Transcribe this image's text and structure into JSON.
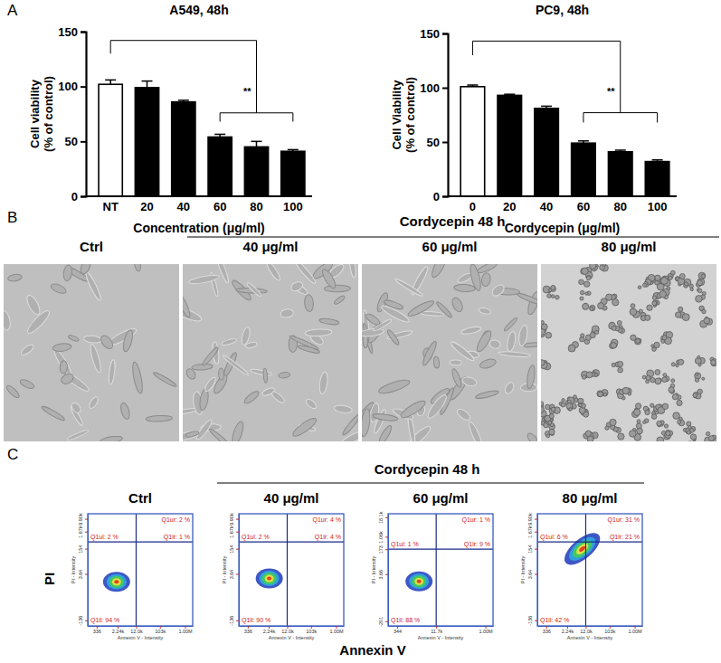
{
  "figure": {
    "panel_labels": [
      "A",
      "B",
      "C"
    ],
    "panel_b": {
      "header": "Cordycepin 48 h",
      "titles": [
        "Ctrl",
        "40 μg/ml",
        "60 μg/ml",
        "80 μg/ml"
      ]
    },
    "panel_c": {
      "header": "Cordycepin 48 h",
      "x_title": "Annexin V",
      "y_title": "PI"
    }
  },
  "chart_data": [
    {
      "type": "bar",
      "title": "A549, 48h",
      "x_label": "Concentration (μg/ml)",
      "y_label": [
        "Cell viability",
        "(% of control)"
      ],
      "categories": [
        "NT",
        "20",
        "40",
        "60",
        "80",
        "100"
      ],
      "values": [
        102,
        99,
        86,
        54,
        45,
        41
      ],
      "errors": [
        4,
        6,
        1.5,
        2.5,
        5,
        1.5
      ],
      "colors": [
        "#ffffff",
        "#000000",
        "#000000",
        "#000000",
        "#000000",
        "#000000"
      ],
      "ylim": [
        0,
        150
      ],
      "yticks": [
        0,
        50,
        100,
        150
      ],
      "brackets": [
        {
          "from": 0,
          "to": 4,
          "y": 142,
          "drops": [
            130,
            76
          ]
        },
        {
          "from": 3,
          "to": 5,
          "y": 76,
          "drops": [
            68,
            68
          ]
        }
      ],
      "annotations": [
        {
          "text": "**",
          "x": 3.85,
          "y": 92
        }
      ]
    },
    {
      "type": "bar",
      "title": "PC9, 48h",
      "x_label": "Cordycepin (μg/ml)",
      "y_label": [
        "Cell Viability",
        "(% of control)"
      ],
      "categories": [
        "0",
        "20",
        "40",
        "60",
        "80",
        "100"
      ],
      "values": [
        101,
        93,
        81,
        49,
        41,
        32
      ],
      "errors": [
        1.5,
        1,
        2,
        2,
        1.5,
        1.5
      ],
      "colors": [
        "#ffffff",
        "#000000",
        "#000000",
        "#000000",
        "#000000",
        "#000000"
      ],
      "ylim": [
        0,
        150
      ],
      "yticks": [
        0,
        50,
        100,
        150
      ],
      "brackets": [
        {
          "from": 0,
          "to": 4,
          "y": 143,
          "drops": [
            130,
            77
          ]
        },
        {
          "from": 3,
          "to": 5,
          "y": 77,
          "drops": [
            68,
            68
          ]
        }
      ],
      "annotations": [
        {
          "text": "**",
          "x": 3.85,
          "y": 93
        }
      ]
    },
    {
      "type": "scatter",
      "title": "Ctrl",
      "x_label": "Annexin V - Intensity",
      "y_label": "PI - Intensity",
      "log": true,
      "xlim": [
        150,
        2000000
      ],
      "ylim": [
        -300,
        20000
      ],
      "xticks": [
        336,
        {
          "value": 2240,
          "label": "2.24k"
        },
        {
          "value": 12000,
          "label": "12.0k"
        },
        {
          "value": 103000,
          "label": "103k"
        },
        {
          "value": 1000000,
          "label": "1.00M"
        }
      ],
      "yticks": [
        -136,
        3.64,
        154,
        {
          "value": 1670,
          "label": "1.67k"
        },
        {
          "value": 9900,
          "label": "9.90k"
        }
      ],
      "gate_x": 12000,
      "gate_y": 400,
      "values": [
        2,
        2,
        94,
        1
      ],
      "value_labels": [
        "Q1ul: 2 %",
        "Q1ur: 2 %",
        "Q1ll: 94 %",
        "Q1lr: 1 %"
      ]
    },
    {
      "type": "scatter",
      "title": "40 μg/ml",
      "x_label": "Annexin V - Intensity",
      "y_label": "PI - Intensity",
      "log": true,
      "xlim": [
        150,
        2000000
      ],
      "ylim": [
        -300,
        20000
      ],
      "xticks": [
        336,
        {
          "value": 2240,
          "label": "2.24k"
        },
        {
          "value": 12000,
          "label": "12.0k"
        },
        {
          "value": 103000,
          "label": "103k"
        },
        {
          "value": 1000000,
          "label": "1.00M"
        }
      ],
      "yticks": [
        -136,
        3.64,
        154,
        {
          "value": 1670,
          "label": "1.67k"
        },
        {
          "value": 9900,
          "label": "9.90k"
        }
      ],
      "gate_x": 12000,
      "gate_y": 400,
      "values": [
        2,
        4,
        90,
        4
      ],
      "value_labels": [
        "Q1ul: 2 %",
        "Q1ur: 4 %",
        "Q1ll: 90 %",
        "Q1lr: 4 %"
      ]
    },
    {
      "type": "scatter",
      "title": "60 μg/ml",
      "x_label": "Annexin V - Intensity",
      "y_label": "PI - Intensity",
      "log": true,
      "xlim": [
        150,
        2000000
      ],
      "ylim": [
        -400,
        30000
      ],
      "xticks": [
        344,
        {
          "value": 11700,
          "label": "11.7k"
        },
        {
          "value": 1000000,
          "label": "1.00M"
        }
      ],
      "yticks": [
        -201,
        3.66,
        173,
        {
          "value": 1060,
          "label": "1.06k"
        },
        {
          "value": 18100,
          "label": "18.1k"
        }
      ],
      "gate_x": 11700,
      "gate_y": 173,
      "values": [
        1,
        1,
        88,
        9
      ],
      "value_labels": [
        "Q1ul: 1 %",
        "Q1ur: 1 %",
        "Q1ll: 88 %",
        "Q1lr: 9 %"
      ]
    },
    {
      "type": "scatter",
      "title": "80 μg/ml",
      "x_label": "Annexin V - Intensity",
      "y_label": "PI - Intensity",
      "log": true,
      "xlim": [
        150,
        2000000
      ],
      "ylim": [
        -300,
        20000
      ],
      "xticks": [
        336,
        {
          "value": 2240,
          "label": "2.24k"
        },
        {
          "value": 12000,
          "label": "12.0k"
        },
        {
          "value": 103000,
          "label": "103k"
        },
        {
          "value": 1000000,
          "label": "1.00M"
        }
      ],
      "yticks": [
        -136,
        3.64,
        154,
        {
          "value": 1670,
          "label": "1.67k"
        },
        {
          "value": 9900,
          "label": "9.90k"
        }
      ],
      "gate_x": 12000,
      "gate_y": 400,
      "values": [
        6,
        31,
        42,
        21
      ],
      "value_labels": [
        "Q1ul: 6 %",
        "Q1ur: 31 %",
        "Q1ll: 42 %",
        "Q1lr: 21 %"
      ]
    }
  ]
}
